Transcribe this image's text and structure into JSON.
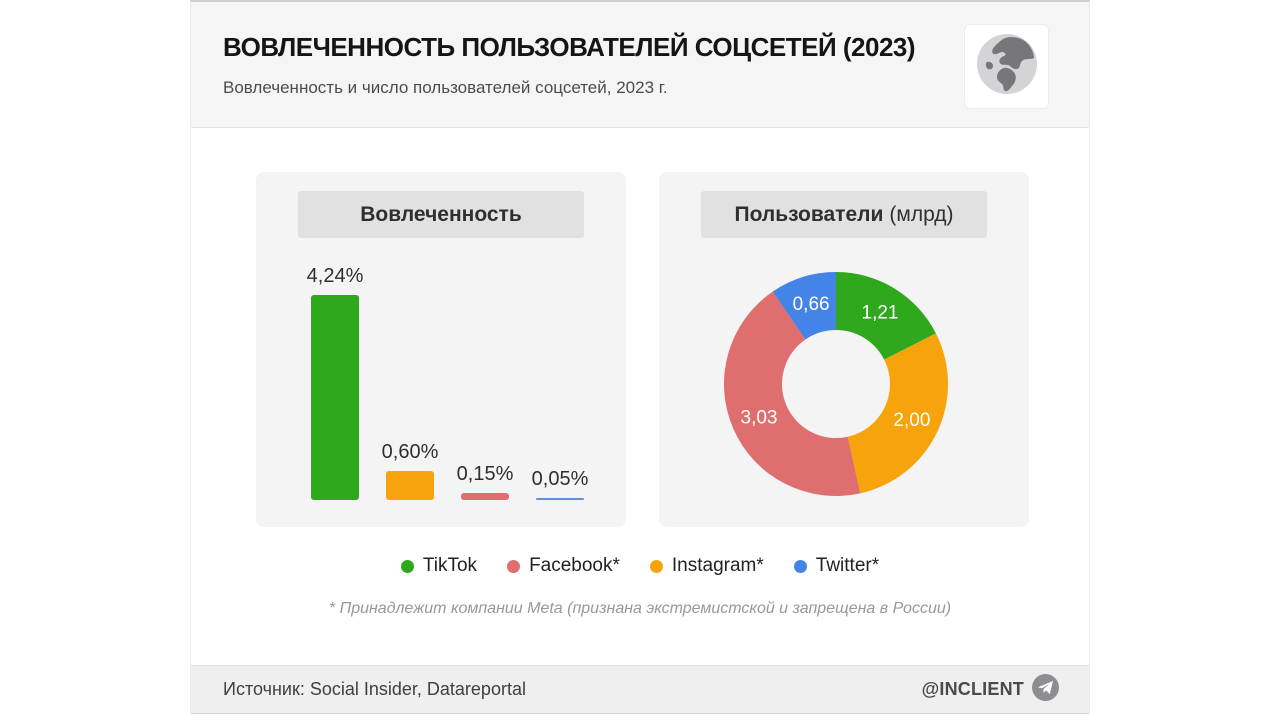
{
  "header": {
    "title": "ВОВЛЕЧЕННОСТЬ ПОЛЬЗОВАТЕЛЕЙ СОЦСЕТЕЙ (2023)",
    "subtitle": "Вовлеченность и число пользователей соцсетей, 2023 г.",
    "logo_icon": "globe-icon"
  },
  "panels": {
    "engagement": {
      "title": "Вовлеченность"
    },
    "users": {
      "title_bold": "Пользователи",
      "title_suffix": "(млрд)"
    }
  },
  "chart_data": [
    {
      "type": "bar",
      "title": "Вовлеченность",
      "ylabel": "Вовлеченность, %",
      "categories": [
        "TikTok",
        "Instagram*",
        "Facebook*",
        "Twitter*"
      ],
      "values": [
        4.24,
        0.6,
        0.15,
        0.05
      ],
      "labels": [
        "4,24%",
        "0,60%",
        "0,15%",
        "0,05%"
      ],
      "colors": [
        "#2fa81e",
        "#f7a30b",
        "#df6e6e",
        "#5d8fd6"
      ],
      "ylim": [
        0,
        4.24
      ],
      "grid": false,
      "legend_position": "below"
    },
    {
      "type": "pie",
      "subtype": "donut",
      "title": "Пользователи (млрд)",
      "categories": [
        "TikTok",
        "Instagram*",
        "Facebook*",
        "Twitter*"
      ],
      "values": [
        1.21,
        2.0,
        3.03,
        0.66
      ],
      "labels": [
        "1,21",
        "2,00",
        "3,03",
        "0,66"
      ],
      "colors": [
        "#2fa81e",
        "#f7a30b",
        "#df6e6e",
        "#4484e6"
      ],
      "start_angle_deg": 0,
      "direction": "clockwise",
      "legend_position": "below"
    }
  ],
  "legend": {
    "items": [
      {
        "label": "TikTok",
        "color": "#2fa81e"
      },
      {
        "label": "Facebook*",
        "color": "#df6e6e"
      },
      {
        "label": "Instagram*",
        "color": "#f7a30b"
      },
      {
        "label": "Twitter*",
        "color": "#4484e6"
      }
    ]
  },
  "footnote": "* Принадлежит компании Meta (признана экстремистской и запрещена в России)",
  "footer": {
    "source": "Источник: Social Insider, Datareportal",
    "handle": "@INCLIENT",
    "handle_icon": "telegram-icon"
  },
  "colors": {
    "header_band": "#f5f5f6",
    "panel_bg": "#f4f4f5",
    "panel_title_bg": "#e1e1e1",
    "footer_bg": "#efeff0"
  }
}
